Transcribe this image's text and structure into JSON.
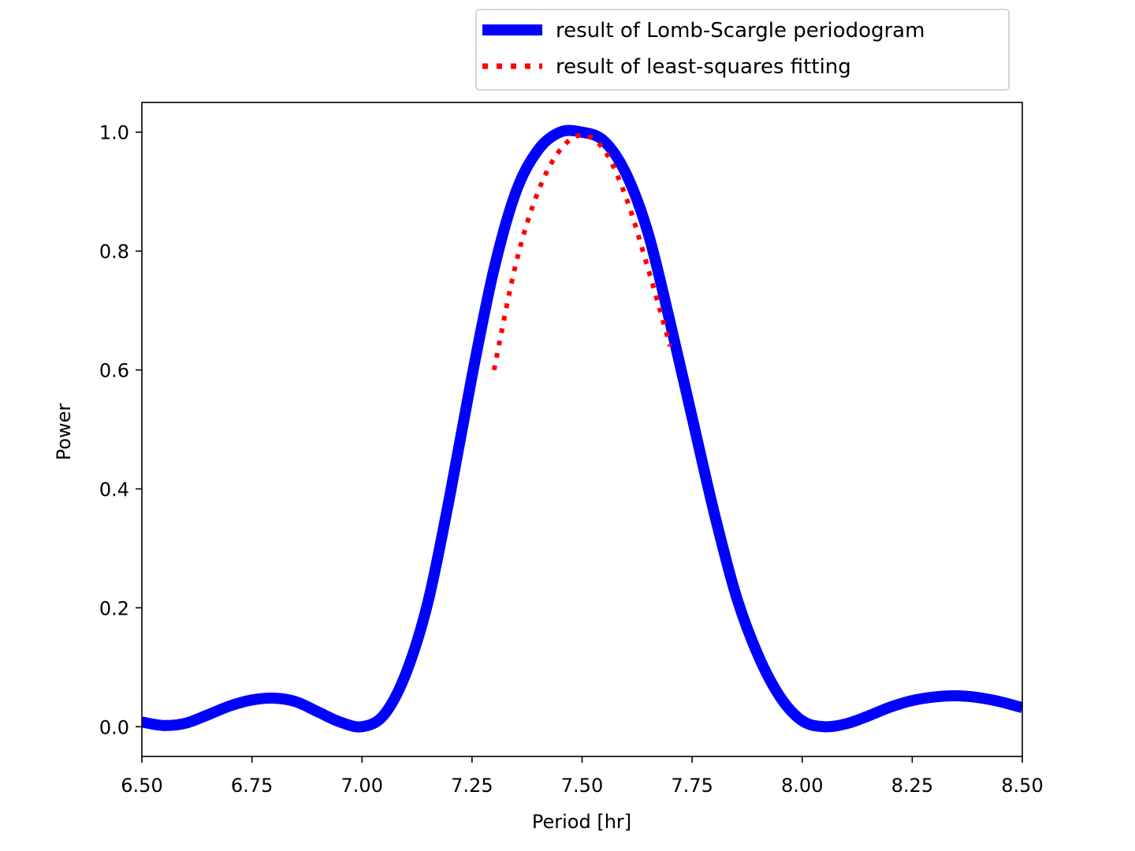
{
  "chart_data": {
    "type": "line",
    "title": "",
    "xlabel": "Period [hr]",
    "ylabel": "Power",
    "xlim": [
      6.5,
      8.5
    ],
    "ylim": [
      -0.05,
      1.05
    ],
    "grid": false,
    "x_ticks": [
      6.5,
      6.75,
      7.0,
      7.25,
      7.5,
      7.75,
      8.0,
      8.25,
      8.5
    ],
    "x_tick_labels": [
      "6.50",
      "6.75",
      "7.00",
      "7.25",
      "7.50",
      "7.75",
      "8.00",
      "8.25",
      "8.50"
    ],
    "y_ticks": [
      0.0,
      0.2,
      0.4,
      0.6,
      0.8,
      1.0
    ],
    "y_tick_labels": [
      "0.0",
      "0.2",
      "0.4",
      "0.6",
      "0.8",
      "1.0"
    ],
    "legend_position": "above-top-right",
    "series": [
      {
        "name": "result of Lomb-Scargle periodogram",
        "color": "#0000ff",
        "style": "solid",
        "x": [
          6.5,
          6.55,
          6.6,
          6.65,
          6.7,
          6.75,
          6.8,
          6.85,
          6.9,
          6.95,
          7.0,
          7.05,
          7.1,
          7.15,
          7.2,
          7.25,
          7.3,
          7.35,
          7.4,
          7.45,
          7.5,
          7.55,
          7.6,
          7.65,
          7.7,
          7.75,
          7.8,
          7.85,
          7.9,
          7.95,
          8.0,
          8.05,
          8.1,
          8.15,
          8.2,
          8.25,
          8.3,
          8.35,
          8.4,
          8.45,
          8.5
        ],
        "values": [
          0.008,
          0.002,
          0.006,
          0.02,
          0.035,
          0.045,
          0.048,
          0.042,
          0.025,
          0.008,
          0.0,
          0.02,
          0.09,
          0.21,
          0.39,
          0.59,
          0.77,
          0.9,
          0.97,
          1.0,
          1.0,
          0.985,
          0.93,
          0.83,
          0.68,
          0.52,
          0.36,
          0.22,
          0.12,
          0.05,
          0.01,
          0.0,
          0.005,
          0.018,
          0.033,
          0.044,
          0.05,
          0.052,
          0.049,
          0.042,
          0.032
        ]
      },
      {
        "name": "result of least-squares fitting",
        "color": "#ff0000",
        "style": "dotted",
        "x": [
          7.3,
          7.35,
          7.4,
          7.45,
          7.5,
          7.55,
          7.6,
          7.65,
          7.7
        ],
        "values": [
          0.6,
          0.78,
          0.9,
          0.97,
          0.995,
          0.97,
          0.89,
          0.77,
          0.64
        ]
      }
    ]
  }
}
